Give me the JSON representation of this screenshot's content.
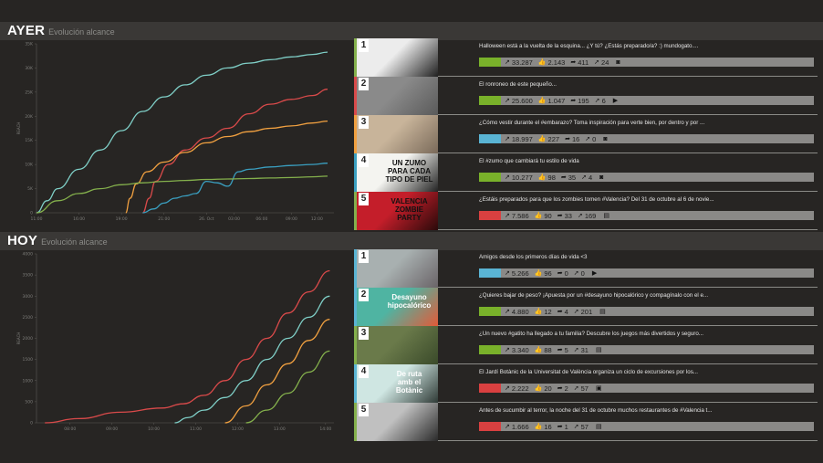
{
  "ayer": {
    "title": "AYER",
    "subtitle": "Evolución alcance",
    "chart_data": {
      "type": "line",
      "ylabel": "REACH",
      "yticks": [
        "0",
        "5K",
        "10K",
        "15K",
        "20K",
        "25K",
        "30K",
        "35K"
      ],
      "ylim": [
        0,
        35000
      ],
      "xticks": [
        "11:00",
        "16:00",
        "19:00",
        "21:00",
        "26. Oct",
        "03:00",
        "06:00",
        "09:00",
        "12:00"
      ],
      "series": [
        {
          "color": "#7fcfc7",
          "x": [
            0,
            0.5,
            1,
            2,
            3,
            4,
            5,
            6,
            7,
            8,
            9,
            10,
            11,
            12,
            13,
            13.7
          ],
          "values": [
            0,
            2500,
            5000,
            9000,
            13000,
            17000,
            21000,
            24000,
            26500,
            28500,
            30000,
            31000,
            31700,
            32300,
            32800,
            33287
          ]
        },
        {
          "color": "#d94a4a",
          "x": [
            5,
            5.3,
            5.6,
            6.2,
            7,
            8,
            9,
            10,
            11,
            12,
            13,
            13.7
          ],
          "values": [
            0,
            3000,
            6500,
            10000,
            13000,
            15500,
            17500,
            20500,
            22500,
            23500,
            24300,
            25600
          ]
        },
        {
          "color": "#f0a040",
          "x": [
            4.2,
            4.4,
            4.7,
            5.2,
            6,
            7,
            8,
            9,
            10,
            11,
            12,
            13,
            13.7
          ],
          "values": [
            0,
            3000,
            6000,
            8500,
            10500,
            12500,
            14500,
            15800,
            16800,
            17500,
            18000,
            18600,
            18997
          ]
        },
        {
          "color": "#3a9fc0",
          "x": [
            5,
            5.5,
            6,
            6.5,
            7,
            7.5,
            8,
            8.5,
            9,
            9.5,
            10,
            11,
            12,
            13,
            13.7
          ],
          "values": [
            0,
            800,
            2000,
            3000,
            3500,
            4000,
            6500,
            6200,
            5500,
            8500,
            9000,
            9500,
            9800,
            10000,
            10277
          ]
        },
        {
          "color": "#84b04c",
          "x": [
            0,
            1,
            2,
            3,
            4,
            5,
            6,
            7,
            8,
            9,
            10,
            11,
            12,
            13,
            13.7
          ],
          "values": [
            0,
            2500,
            4000,
            5000,
            5800,
            6200,
            6500,
            6700,
            6900,
            7000,
            7100,
            7200,
            7300,
            7450,
            7586
          ]
        }
      ]
    },
    "posts": [
      {
        "rank": "1",
        "color": "#84b04c",
        "reach_color": "#79b12a",
        "caption": "Halloween está a la vuelta de la esquina... ¿Y tú? ¿Estás preparado/a? :) mundogato....",
        "reach": "33.287",
        "likes": "2.143",
        "shares": "411",
        "clicks": "24",
        "media": "camera-icon"
      },
      {
        "rank": "2",
        "color": "#d94a4a",
        "reach_color": "#79b12a",
        "caption": "El ronroneo de este pequeño...",
        "reach": "25.600",
        "likes": "1.047",
        "shares": "195",
        "clicks": "6",
        "media": "play-icon"
      },
      {
        "rank": "3",
        "color": "#f0a040",
        "reach_color": "#5ab4d4",
        "caption": "¿Cómo vestir durante el #embarazo? Toma inspiración para verte bien, por dentro y por ...",
        "reach": "18.997",
        "likes": "227",
        "shares": "16",
        "clicks": "0",
        "media": "camera-icon"
      },
      {
        "rank": "4",
        "color": "#3a9fc0",
        "reach_color": "#79b12a",
        "caption": "El #zumo que cambiará tu estilo de vida",
        "reach": "10.277",
        "likes": "98",
        "shares": "35",
        "clicks": "4",
        "media": "camera-icon",
        "thumb_text": [
          "UN ZUMO",
          "PARA CADA",
          "TIPO DE PIEL"
        ]
      },
      {
        "rank": "5",
        "color": "#84b04c",
        "reach_color": "#d94040",
        "caption": "¿Estáis preparados para que los zombies tomen #Valencia? Del 31 de octubre al 6 de novie...",
        "reach": "7.586",
        "likes": "90",
        "shares": "33",
        "clicks": "169",
        "media": "document-icon",
        "thumb_text": [
          "VALENCIA",
          "ZOMBIE",
          "PARTY"
        ]
      }
    ]
  },
  "hoy": {
    "title": "HOY",
    "subtitle": "Evolución alcance",
    "chart_data": {
      "type": "line",
      "ylabel": "REACH",
      "yticks": [
        "0",
        "500",
        "1000",
        "1500",
        "2000",
        "2500",
        "3000",
        "3500",
        "4000"
      ],
      "ylim": [
        0,
        4000
      ],
      "xticks": [
        "08:00",
        "09:00",
        "10:00",
        "11:00",
        "12:00",
        "13:00",
        "14:00"
      ],
      "series": [
        {
          "color": "#d94a4a",
          "x": [
            7.2,
            8,
            9,
            10,
            10.5,
            11,
            11.5,
            12,
            12.5,
            13,
            13.5,
            14
          ],
          "values": [
            0,
            100,
            250,
            350,
            450,
            650,
            1000,
            1500,
            2000,
            2600,
            3100,
            3600
          ]
        },
        {
          "color": "#7fcfc7",
          "x": [
            10.3,
            10.6,
            11,
            11.5,
            12,
            12.5,
            13,
            13.5,
            14
          ],
          "values": [
            0,
            120,
            300,
            600,
            1000,
            1500,
            2000,
            2500,
            3000
          ]
        },
        {
          "color": "#f0a040",
          "x": [
            11.5,
            12,
            12.5,
            13,
            13.5,
            14
          ],
          "values": [
            0,
            400,
            900,
            1400,
            1950,
            2450
          ]
        },
        {
          "color": "#84b04c",
          "x": [
            12,
            12.5,
            13,
            13.5,
            14
          ],
          "values": [
            0,
            300,
            700,
            1200,
            1700
          ]
        }
      ]
    },
    "posts": [
      {
        "rank": "1",
        "color": "#5ab4d4",
        "reach_color": "#5ab4d4",
        "caption": "Amigos desde los primeros días de vida <3",
        "reach": "5.266",
        "likes": "96",
        "shares": "0",
        "clicks": "0",
        "media": "play-icon"
      },
      {
        "rank": "2",
        "color": "#5ab4d4",
        "reach_color": "#79b12a",
        "caption": "¿Quieres bajar de peso? ¡Apuesta por un #desayuno hipocalórico y compagínalo con el e...",
        "reach": "4.880",
        "likes": "12",
        "shares": "4",
        "clicks": "201",
        "media": "document-icon",
        "thumb_text": [
          "Desayuno",
          "hipocalórico"
        ]
      },
      {
        "rank": "3",
        "color": "#84b04c",
        "reach_color": "#79b12a",
        "caption": "¿Un nuevo #gatito ha llegado a tu familia? Descubre los juegos más divertidos y seguro...",
        "reach": "3.340",
        "likes": "88",
        "shares": "5",
        "clicks": "31",
        "media": "document-icon"
      },
      {
        "rank": "4",
        "color": "#5ab4d4",
        "reach_color": "#d94040",
        "caption": "El Jardí Botànic de la Universitat de València organiza un ciclo de excursiones por los...",
        "reach": "2.222",
        "likes": "20",
        "shares": "2",
        "clicks": "57",
        "media": "image-icon",
        "thumb_text": [
          "De ruta",
          "amb el Botànic"
        ]
      },
      {
        "rank": "5",
        "color": "#84b04c",
        "reach_color": "#d94040",
        "caption": "Antes de sucumbir al terror, la noche del 31 de octubre muchos restaurantes de #Valencia t...",
        "reach": "1.666",
        "likes": "16",
        "shares": "1",
        "clicks": "57",
        "media": "document-icon"
      }
    ]
  },
  "icons": {
    "reach": "trend-icon",
    "likes": "thumbs-up-icon",
    "shares": "share-icon",
    "clicks": "cursor-icon"
  }
}
